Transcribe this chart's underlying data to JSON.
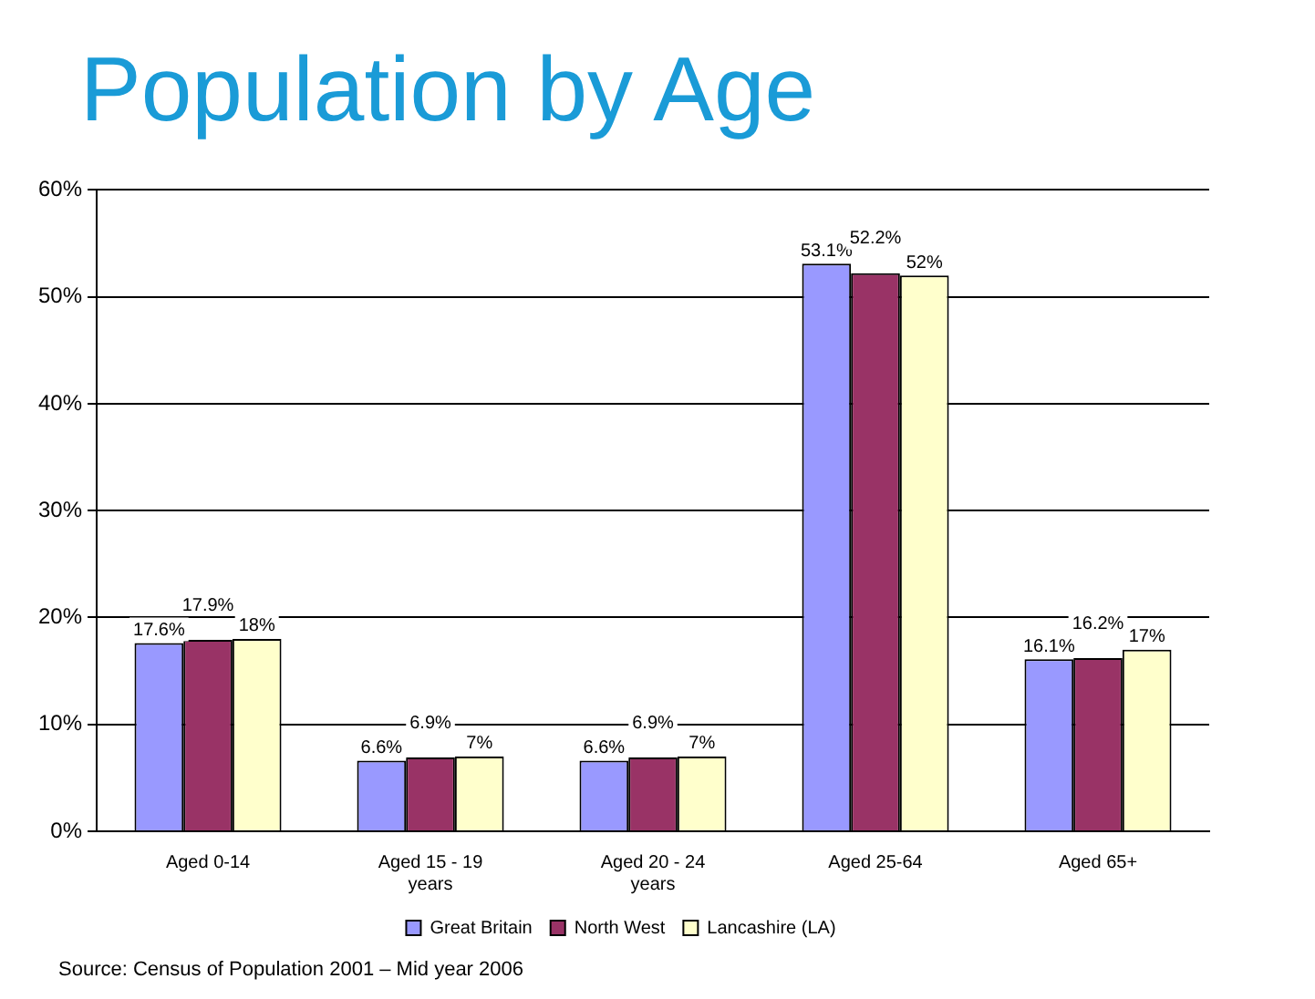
{
  "chart_data": {
    "type": "bar",
    "title": "Population by Age",
    "categories": [
      "Aged 0-14",
      "Aged 15 - 19 years",
      "Aged 20 - 24 years",
      "Aged 25-64",
      "Aged 65+"
    ],
    "series": [
      {
        "name": "Great Britain",
        "color": "#9999ff",
        "values": [
          17.6,
          6.6,
          6.6,
          53.1,
          16.1
        ],
        "value_labels": [
          "17.6%",
          "6.6%",
          "6.6%",
          "53.1%",
          "16.1%"
        ]
      },
      {
        "name": "North West",
        "color": "#993366",
        "values": [
          17.9,
          6.9,
          6.9,
          52.2,
          16.2
        ],
        "value_labels": [
          "17.9%",
          "6.9%",
          "6.9%",
          "52.2%",
          "16.2%"
        ]
      },
      {
        "name": "Lancashire (LA)",
        "color": "#ffffcc",
        "values": [
          18,
          7,
          7,
          52,
          17
        ],
        "value_labels": [
          "18%",
          "7%",
          "7%",
          "52%",
          "17%"
        ]
      }
    ],
    "ylim": [
      0,
      60
    ],
    "yticks": [
      {
        "value": 0,
        "label": "0%"
      },
      {
        "value": 10,
        "label": "10%"
      },
      {
        "value": 20,
        "label": "20%"
      },
      {
        "value": 30,
        "label": "30%"
      },
      {
        "value": 40,
        "label": "40%"
      },
      {
        "value": 50,
        "label": "50%"
      },
      {
        "value": 60,
        "label": "60%"
      }
    ],
    "grid": "y",
    "legend": "bottom",
    "annotations": [
      "Source: Census of Population 2001 – Mid year 2006"
    ]
  }
}
